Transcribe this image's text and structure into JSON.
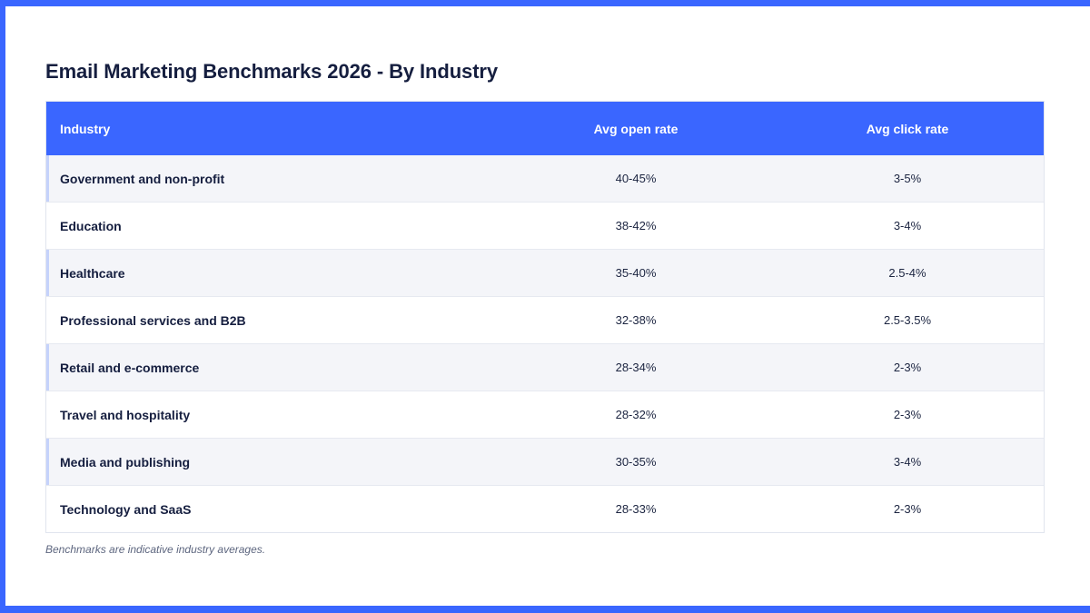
{
  "title": "Email Marketing Benchmarks 2026 - By Industry",
  "colors": {
    "accent": "#3a66ff",
    "row_alt": "#f4f5f9",
    "row_marker": "#c5d2fb",
    "text_dark": "#151e3f",
    "footnote": "#5d667f"
  },
  "table": {
    "headers": {
      "industry": "Industry",
      "open_rate": "Avg open rate",
      "click_rate": "Avg click rate"
    },
    "rows": [
      {
        "industry": "Government and non-profit",
        "open_rate": "40-45%",
        "click_rate": "3-5%"
      },
      {
        "industry": "Education",
        "open_rate": "38-42%",
        "click_rate": "3-4%"
      },
      {
        "industry": "Healthcare",
        "open_rate": "35-40%",
        "click_rate": "2.5-4%"
      },
      {
        "industry": "Professional services and B2B",
        "open_rate": "32-38%",
        "click_rate": "2.5-3.5%"
      },
      {
        "industry": "Retail and e-commerce",
        "open_rate": "28-34%",
        "click_rate": "2-3%"
      },
      {
        "industry": "Travel and hospitality",
        "open_rate": "28-32%",
        "click_rate": "2-3%"
      },
      {
        "industry": "Media and publishing",
        "open_rate": "30-35%",
        "click_rate": "3-4%"
      },
      {
        "industry": "Technology and SaaS",
        "open_rate": "28-33%",
        "click_rate": "2-3%"
      }
    ]
  },
  "footnote": "Benchmarks are indicative industry averages."
}
